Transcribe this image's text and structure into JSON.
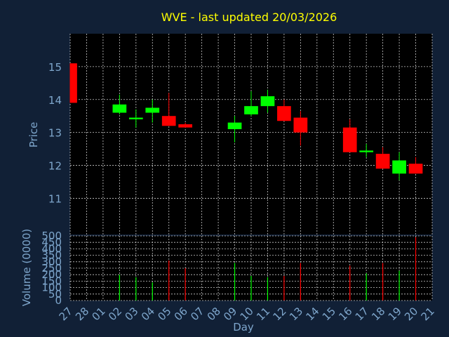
{
  "title": "WVE - last updated 20/03/2026",
  "colors": {
    "background": "#112036",
    "plot_background": "#000000",
    "grid": "#c8c8c8",
    "axis_text": "#7ea6cc",
    "title": "#ffff00",
    "up": "#00ff00",
    "down": "#ff0000"
  },
  "chart_data": [
    {
      "type": "candlestick",
      "ylabel": "Price",
      "ylim": [
        9.9,
        16.0
      ],
      "yticks": [
        11,
        12,
        13,
        14,
        15
      ],
      "grid": true,
      "x_categories": [
        "27",
        "28",
        "01",
        "02",
        "03",
        "04",
        "05",
        "06",
        "07",
        "08",
        "09",
        "10",
        "11",
        "12",
        "13",
        "14",
        "15",
        "16",
        "17",
        "18",
        "19",
        "20",
        "21"
      ],
      "candles": [
        {
          "x": "27",
          "open": 15.1,
          "high": 15.1,
          "low": 13.9,
          "close": 13.9
        },
        {
          "x": "02",
          "open": 13.6,
          "high": 14.15,
          "low": 13.55,
          "close": 13.85
        },
        {
          "x": "03",
          "open": 13.4,
          "high": 13.7,
          "low": 13.15,
          "close": 13.45
        },
        {
          "x": "04",
          "open": 13.6,
          "high": 14.0,
          "low": 13.3,
          "close": 13.75
        },
        {
          "x": "05",
          "open": 13.5,
          "high": 14.2,
          "low": 13.2,
          "close": 13.2
        },
        {
          "x": "06",
          "open": 13.25,
          "high": 13.3,
          "low": 13.15,
          "close": 13.15
        },
        {
          "x": "09",
          "open": 13.1,
          "high": 13.5,
          "low": 12.7,
          "close": 13.3
        },
        {
          "x": "10",
          "open": 13.55,
          "high": 14.25,
          "low": 13.5,
          "close": 13.8
        },
        {
          "x": "11",
          "open": 13.8,
          "high": 14.3,
          "low": 13.6,
          "close": 14.1
        },
        {
          "x": "12",
          "open": 13.8,
          "high": 14.0,
          "low": 13.35,
          "close": 13.35
        },
        {
          "x": "13",
          "open": 13.45,
          "high": 13.65,
          "low": 12.6,
          "close": 13.0
        },
        {
          "x": "16",
          "open": 13.15,
          "high": 13.4,
          "low": 12.4,
          "close": 12.4
        },
        {
          "x": "17",
          "open": 12.4,
          "high": 12.65,
          "low": 12.25,
          "close": 12.45
        },
        {
          "x": "18",
          "open": 12.35,
          "high": 12.55,
          "low": 11.9,
          "close": 11.9
        },
        {
          "x": "19",
          "open": 11.75,
          "high": 12.4,
          "low": 11.55,
          "close": 12.15
        },
        {
          "x": "20",
          "open": 12.05,
          "high": 12.25,
          "low": 11.75,
          "close": 11.75
        }
      ]
    },
    {
      "type": "bar",
      "xlabel": "Day",
      "ylabel": "Volume (0000)",
      "ylim": [
        0,
        500
      ],
      "yticks": [
        0,
        50,
        100,
        150,
        200,
        250,
        300,
        350,
        400,
        450,
        500
      ],
      "grid": true,
      "bars": [
        {
          "x": "02",
          "value": 200,
          "direction": "up"
        },
        {
          "x": "03",
          "value": 180,
          "direction": "up"
        },
        {
          "x": "04",
          "value": 140,
          "direction": "up"
        },
        {
          "x": "05",
          "value": 310,
          "direction": "down"
        },
        {
          "x": "06",
          "value": 250,
          "direction": "down"
        },
        {
          "x": "09",
          "value": 290,
          "direction": "up"
        },
        {
          "x": "10",
          "value": 190,
          "direction": "up"
        },
        {
          "x": "11",
          "value": 180,
          "direction": "up"
        },
        {
          "x": "12",
          "value": 190,
          "direction": "down"
        },
        {
          "x": "13",
          "value": 290,
          "direction": "down"
        },
        {
          "x": "16",
          "value": 270,
          "direction": "down"
        },
        {
          "x": "17",
          "value": 210,
          "direction": "up"
        },
        {
          "x": "18",
          "value": 290,
          "direction": "down"
        },
        {
          "x": "19",
          "value": 230,
          "direction": "up"
        },
        {
          "x": "20",
          "value": 490,
          "direction": "down"
        }
      ]
    }
  ]
}
